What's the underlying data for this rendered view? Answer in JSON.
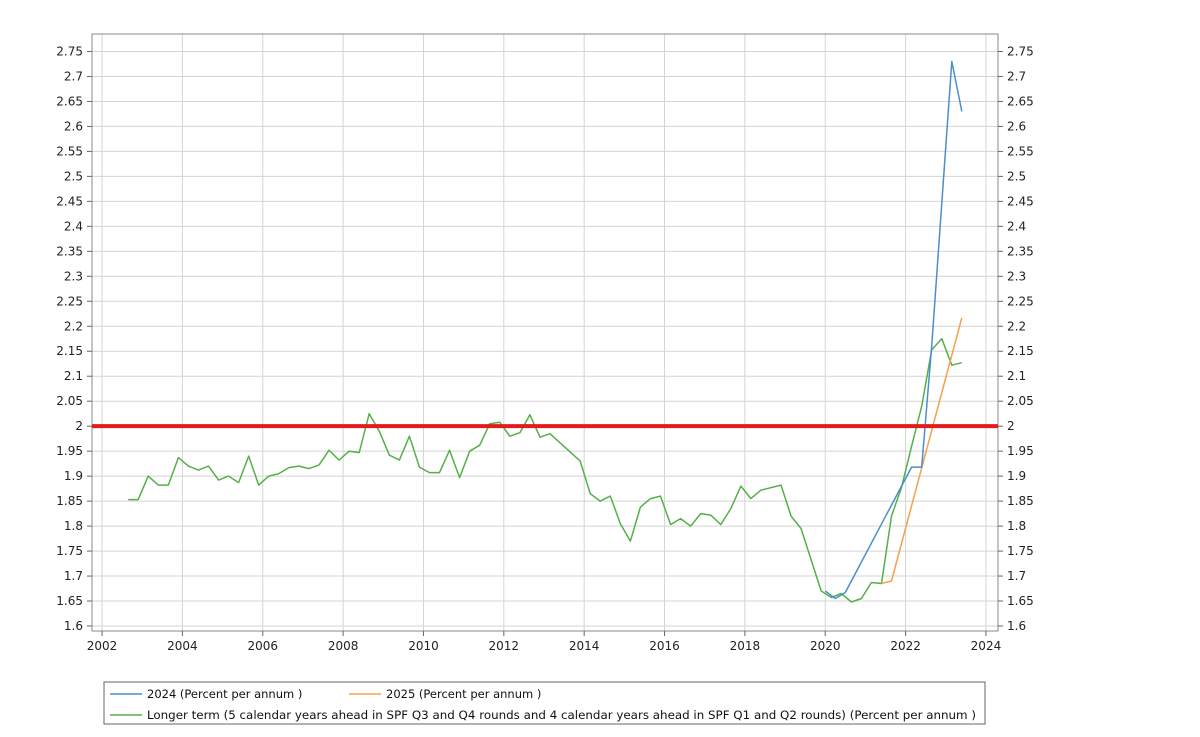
{
  "chart_data": {
    "type": "line",
    "title": "",
    "xlabel": "",
    "ylabel": "",
    "xlim": [
      2001.75,
      2024.3
    ],
    "ylim": [
      1.59,
      2.785
    ],
    "x_ticks": [
      {
        "value": 2002,
        "label": "2002"
      },
      {
        "value": 2004,
        "label": "2004"
      },
      {
        "value": 2006,
        "label": "2006"
      },
      {
        "value": 2008,
        "label": "2008"
      },
      {
        "value": 2010,
        "label": "2010"
      },
      {
        "value": 2012,
        "label": "2012"
      },
      {
        "value": 2014,
        "label": "2014"
      },
      {
        "value": 2016,
        "label": "2016"
      },
      {
        "value": 2018,
        "label": "2018"
      },
      {
        "value": 2020,
        "label": "2020"
      },
      {
        "value": 2022,
        "label": "2022"
      },
      {
        "value": 2024,
        "label": "2024"
      }
    ],
    "y_ticks": [
      {
        "value": 1.6,
        "label": "1.6"
      },
      {
        "value": 1.65,
        "label": "1.65"
      },
      {
        "value": 1.7,
        "label": "1.7"
      },
      {
        "value": 1.75,
        "label": "1.75"
      },
      {
        "value": 1.8,
        "label": "1.8"
      },
      {
        "value": 1.85,
        "label": "1.85"
      },
      {
        "value": 1.9,
        "label": "1.9"
      },
      {
        "value": 1.95,
        "label": "1.95"
      },
      {
        "value": 2.0,
        "label": "2"
      },
      {
        "value": 2.05,
        "label": "2.05"
      },
      {
        "value": 2.1,
        "label": "2.1"
      },
      {
        "value": 2.15,
        "label": "2.15"
      },
      {
        "value": 2.2,
        "label": "2.2"
      },
      {
        "value": 2.25,
        "label": "2.25"
      },
      {
        "value": 2.3,
        "label": "2.3"
      },
      {
        "value": 2.35,
        "label": "2.35"
      },
      {
        "value": 2.4,
        "label": "2.4"
      },
      {
        "value": 2.45,
        "label": "2.45"
      },
      {
        "value": 2.5,
        "label": "2.5"
      },
      {
        "value": 2.55,
        "label": "2.55"
      },
      {
        "value": 2.6,
        "label": "2.6"
      },
      {
        "value": 2.65,
        "label": "2.65"
      },
      {
        "value": 2.7,
        "label": "2.7"
      },
      {
        "value": 2.75,
        "label": "2.75"
      }
    ],
    "grid": true,
    "legend_position": "bottom",
    "reference_line": {
      "y": 2.0,
      "color": "#e41a1c"
    },
    "series": [
      {
        "name": "2024 (Percent per annum )",
        "color": "#4a8fcc",
        "points": [
          [
            2020.0,
            1.67
          ],
          [
            2020.25,
            1.655
          ],
          [
            2020.5,
            1.667
          ],
          [
            2022.15,
            1.918
          ],
          [
            2022.4,
            1.918
          ],
          [
            2022.65,
            2.16
          ],
          [
            2023.15,
            2.73
          ],
          [
            2023.4,
            2.63
          ]
        ]
      },
      {
        "name": "2025 (Percent per annum )",
        "color": "#f5a04a",
        "points": [
          [
            2021.4,
            1.685
          ],
          [
            2021.65,
            1.69
          ],
          [
            2023.4,
            2.217
          ]
        ]
      },
      {
        "name": "Longer term (5 calendar years ahead in SPF Q3 and Q4 rounds and 4 calendar years ahead in SPF Q1 and Q2 rounds) (Percent per annum )",
        "color": "#55b049",
        "points": [
          [
            2002.65,
            1.853
          ],
          [
            2002.9,
            1.853
          ],
          [
            2003.15,
            1.9
          ],
          [
            2003.4,
            1.882
          ],
          [
            2003.65,
            1.882
          ],
          [
            2003.9,
            1.937
          ],
          [
            2004.15,
            1.92
          ],
          [
            2004.4,
            1.912
          ],
          [
            2004.65,
            1.92
          ],
          [
            2004.9,
            1.892
          ],
          [
            2005.15,
            1.9
          ],
          [
            2005.4,
            1.887
          ],
          [
            2005.65,
            1.94
          ],
          [
            2005.9,
            1.882
          ],
          [
            2006.15,
            1.9
          ],
          [
            2006.4,
            1.905
          ],
          [
            2006.65,
            1.917
          ],
          [
            2006.9,
            1.92
          ],
          [
            2007.15,
            1.915
          ],
          [
            2007.4,
            1.922
          ],
          [
            2007.65,
            1.952
          ],
          [
            2007.9,
            1.932
          ],
          [
            2008.15,
            1.95
          ],
          [
            2008.4,
            1.947
          ],
          [
            2008.65,
            2.025
          ],
          [
            2008.9,
            1.99
          ],
          [
            2009.15,
            1.942
          ],
          [
            2009.4,
            1.932
          ],
          [
            2009.65,
            1.98
          ],
          [
            2009.9,
            1.918
          ],
          [
            2010.15,
            1.907
          ],
          [
            2010.4,
            1.907
          ],
          [
            2010.65,
            1.952
          ],
          [
            2010.9,
            1.897
          ],
          [
            2011.15,
            1.95
          ],
          [
            2011.4,
            1.962
          ],
          [
            2011.65,
            2.005
          ],
          [
            2011.9,
            2.008
          ],
          [
            2012.15,
            1.98
          ],
          [
            2012.4,
            1.987
          ],
          [
            2012.65,
            2.023
          ],
          [
            2012.9,
            1.978
          ],
          [
            2013.15,
            1.985
          ],
          [
            2013.9,
            1.93
          ],
          [
            2014.15,
            1.865
          ],
          [
            2014.4,
            1.85
          ],
          [
            2014.65,
            1.86
          ],
          [
            2014.9,
            1.805
          ],
          [
            2015.15,
            1.77
          ],
          [
            2015.4,
            1.838
          ],
          [
            2015.65,
            1.855
          ],
          [
            2015.9,
            1.86
          ],
          [
            2016.15,
            1.803
          ],
          [
            2016.4,
            1.815
          ],
          [
            2016.65,
            1.8
          ],
          [
            2016.9,
            1.825
          ],
          [
            2017.15,
            1.822
          ],
          [
            2017.4,
            1.803
          ],
          [
            2017.65,
            1.835
          ],
          [
            2017.9,
            1.88
          ],
          [
            2018.15,
            1.855
          ],
          [
            2018.4,
            1.872
          ],
          [
            2018.9,
            1.882
          ],
          [
            2019.15,
            1.82
          ],
          [
            2019.4,
            1.795
          ],
          [
            2019.9,
            1.67
          ],
          [
            2020.15,
            1.657
          ],
          [
            2020.4,
            1.665
          ],
          [
            2020.65,
            1.648
          ],
          [
            2020.9,
            1.655
          ],
          [
            2021.15,
            1.687
          ],
          [
            2021.4,
            1.685
          ],
          [
            2021.65,
            1.82
          ],
          [
            2021.9,
            1.878
          ],
          [
            2022.15,
            1.96
          ],
          [
            2022.4,
            2.04
          ],
          [
            2022.65,
            2.153
          ],
          [
            2022.9,
            2.175
          ],
          [
            2023.15,
            2.122
          ],
          [
            2023.4,
            2.127
          ]
        ]
      }
    ]
  }
}
